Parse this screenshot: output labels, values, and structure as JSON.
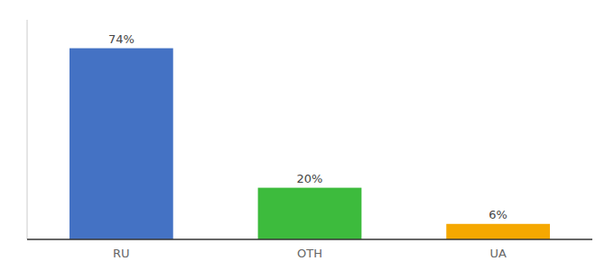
{
  "chart_data": {
    "type": "bar",
    "categories": [
      "RU",
      "OTH",
      "UA"
    ],
    "values": [
      74,
      20,
      6
    ],
    "value_labels": [
      "74%",
      "20%",
      "6%"
    ],
    "colors": [
      "#4472c4",
      "#3dbb3d",
      "#f5a800"
    ],
    "ylim": [
      0,
      85
    ],
    "grid": false,
    "data_labels": true,
    "tick_labels": "x"
  }
}
